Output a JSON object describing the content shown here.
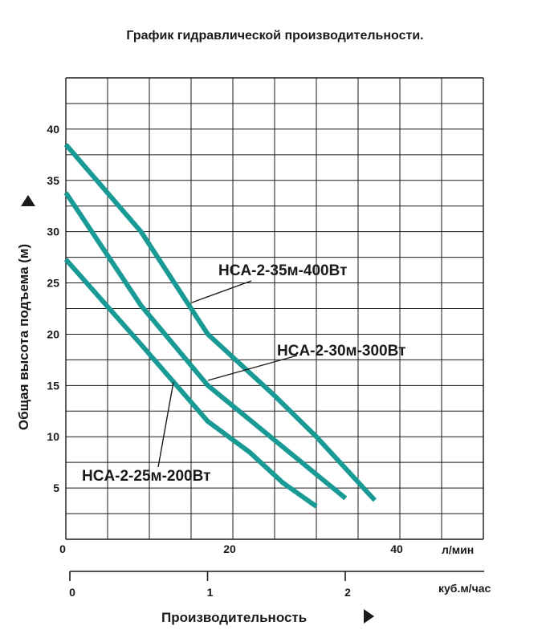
{
  "title": "График гидравлической производительности.",
  "colors": {
    "curve": "#1a9a94",
    "grid": "#1a1a1a",
    "text": "#1a1a1a"
  },
  "chart_data": {
    "type": "line",
    "title": "График гидравлической производительности.",
    "xlabel": "Производительность",
    "ylabel": "Общая высота подъема (м)",
    "x_units_primary": "л/мин",
    "x_units_secondary": "куб.м/час",
    "xlim": [
      0,
      50
    ],
    "ylim": [
      0,
      45
    ],
    "x_ticks": [
      "0",
      "20",
      "40"
    ],
    "x_secondary_ticks": [
      "0",
      "1",
      "2"
    ],
    "y_ticks": [
      "5",
      "10",
      "15",
      "20",
      "25",
      "30",
      "35",
      "40"
    ],
    "grid": true,
    "series": [
      {
        "name": "HCA-2-35м-400Вт",
        "x": [
          0,
          9,
          17,
          25,
          30,
          37
        ],
        "y": [
          38.5,
          30,
          20,
          14,
          10,
          3.8
        ]
      },
      {
        "name": "HCA-2-30м-300Вт",
        "x": [
          0,
          9,
          17,
          23,
          27.5,
          33.5
        ],
        "y": [
          33.8,
          22.8,
          15,
          11,
          8,
          4
        ]
      },
      {
        "name": "HCA-2-25м-200Вт",
        "x": [
          0,
          9,
          17,
          22,
          26,
          30
        ],
        "y": [
          27.3,
          19,
          11.5,
          8.5,
          5.5,
          3.2
        ]
      }
    ]
  }
}
